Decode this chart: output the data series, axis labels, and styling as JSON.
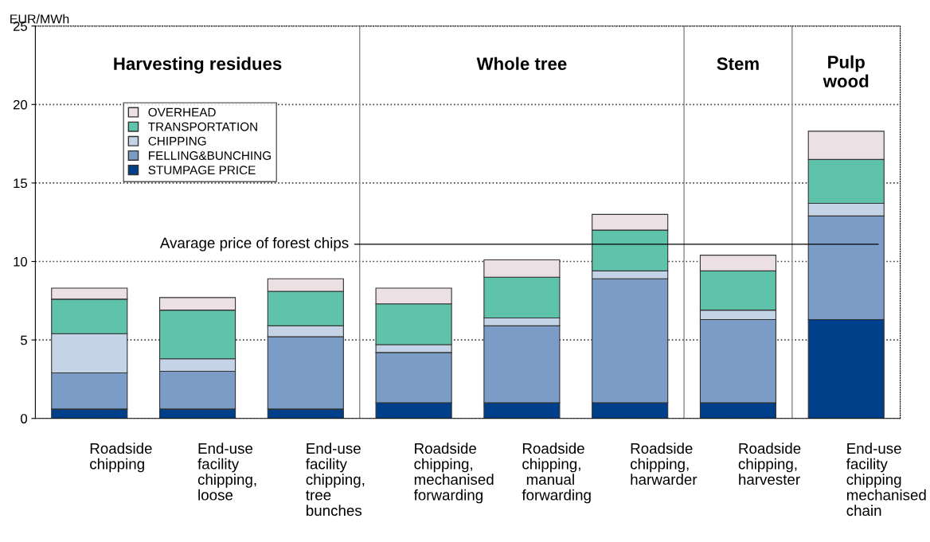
{
  "chart_data": {
    "type": "bar",
    "stacked": true,
    "ylabel": "EUR/MWh",
    "categories": [
      "Roadside\nchipping",
      "End-use\nfacility\nchipping,\nloose",
      "End-use\nfacility\nchipping,\ntree\nbunches",
      "Roadside\nchipping,\nmechanised\nforwarding",
      "Roadside\nchipping,\n manual\nforwarding",
      "Roadside\nchipping,\nharwarder",
      "Roadside\nchipping,\nharvester",
      "End-use\nfacility\nchipping\nmechanised\nchain"
    ],
    "series": [
      {
        "name": "STUMPAGE PRICE",
        "color": "#003f8a",
        "values": [
          0.6,
          0.6,
          0.6,
          1.0,
          1.0,
          1.0,
          1.0,
          6.3
        ]
      },
      {
        "name": "FELLING&BUNCHING",
        "color": "#7b9cc6",
        "values": [
          2.3,
          2.4,
          4.6,
          3.2,
          4.9,
          7.9,
          5.3,
          6.6
        ]
      },
      {
        "name": "CHIPPING",
        "color": "#c5d3e6",
        "values": [
          2.5,
          0.8,
          0.7,
          0.5,
          0.5,
          0.5,
          0.6,
          0.8
        ]
      },
      {
        "name": "TRANSPORTATION",
        "color": "#5fc3ab",
        "values": [
          2.2,
          3.1,
          2.2,
          2.6,
          2.6,
          2.6,
          2.5,
          2.8
        ]
      },
      {
        "name": "OVERHEAD",
        "color": "#ece0e4",
        "values": [
          0.7,
          0.8,
          0.8,
          1.0,
          1.1,
          1.0,
          1.0,
          1.8
        ]
      }
    ],
    "ylim": [
      0,
      25
    ],
    "yticks": [
      0,
      5,
      10,
      15,
      20,
      25
    ],
    "grid": "y",
    "legend": "top left",
    "ref_lines": [
      {
        "axis": "y",
        "value": 11.1,
        "label": "Avarage price of forest chips",
        "color": "#000000"
      }
    ],
    "annotations": [
      "Harvesting residues",
      "Whole tree",
      "Stem",
      "Pulp\nwood"
    ]
  }
}
